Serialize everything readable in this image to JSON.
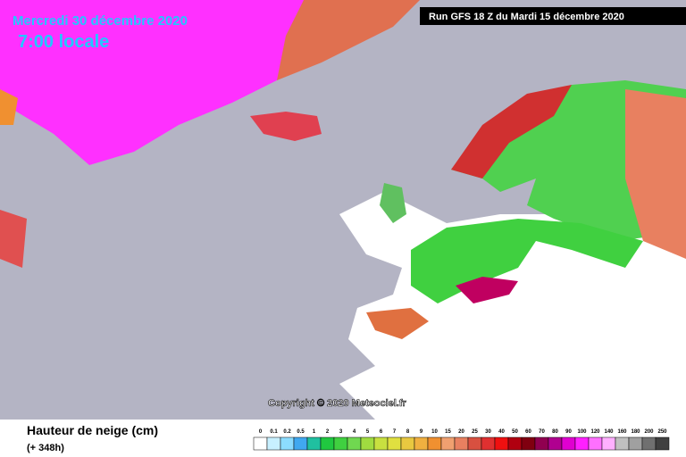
{
  "header": {
    "date": "Mercredi 30 décembre 2020",
    "time": "7:00 locale",
    "run": "Run GFS 18 Z du Mardi 15 décembre 2020"
  },
  "copyright": "Copyright © 2020 Meteociel.fr",
  "footer": {
    "title": "Hauteur de neige (cm)",
    "lead": "(+ 348h)"
  },
  "legend": [
    {
      "label": "0",
      "color": "#ffffff"
    },
    {
      "label": "0.1",
      "color": "#c8f0ff"
    },
    {
      "label": "0.2",
      "color": "#8cdcff"
    },
    {
      "label": "0.5",
      "color": "#40a8f0"
    },
    {
      "label": "1",
      "color": "#20c0a0"
    },
    {
      "label": "2",
      "color": "#20c840"
    },
    {
      "label": "3",
      "color": "#40d040"
    },
    {
      "label": "4",
      "color": "#70d850"
    },
    {
      "label": "5",
      "color": "#a0dc40"
    },
    {
      "label": "6",
      "color": "#c8e040"
    },
    {
      "label": "7",
      "color": "#e0e040"
    },
    {
      "label": "8",
      "color": "#e8c840"
    },
    {
      "label": "9",
      "color": "#f0b040"
    },
    {
      "label": "10",
      "color": "#f09030"
    },
    {
      "label": "15",
      "color": "#f0a070"
    },
    {
      "label": "20",
      "color": "#e88060"
    },
    {
      "label": "25",
      "color": "#d85040"
    },
    {
      "label": "30",
      "color": "#e03030"
    },
    {
      "label": "40",
      "color": "#f01010"
    },
    {
      "label": "50",
      "color": "#b00010"
    },
    {
      "label": "60",
      "color": "#800010"
    },
    {
      "label": "70",
      "color": "#900050"
    },
    {
      "label": "80",
      "color": "#b00090"
    },
    {
      "label": "90",
      "color": "#e000d0"
    },
    {
      "label": "100",
      "color": "#ff20ff"
    },
    {
      "label": "120",
      "color": "#ff70ff"
    },
    {
      "label": "140",
      "color": "#ffb0ff"
    },
    {
      "label": "160",
      "color": "#c0c0c0"
    },
    {
      "label": "180",
      "color": "#a0a0a0"
    },
    {
      "label": "200",
      "color": "#707070"
    },
    {
      "label": "250",
      "color": "#404040"
    }
  ]
}
